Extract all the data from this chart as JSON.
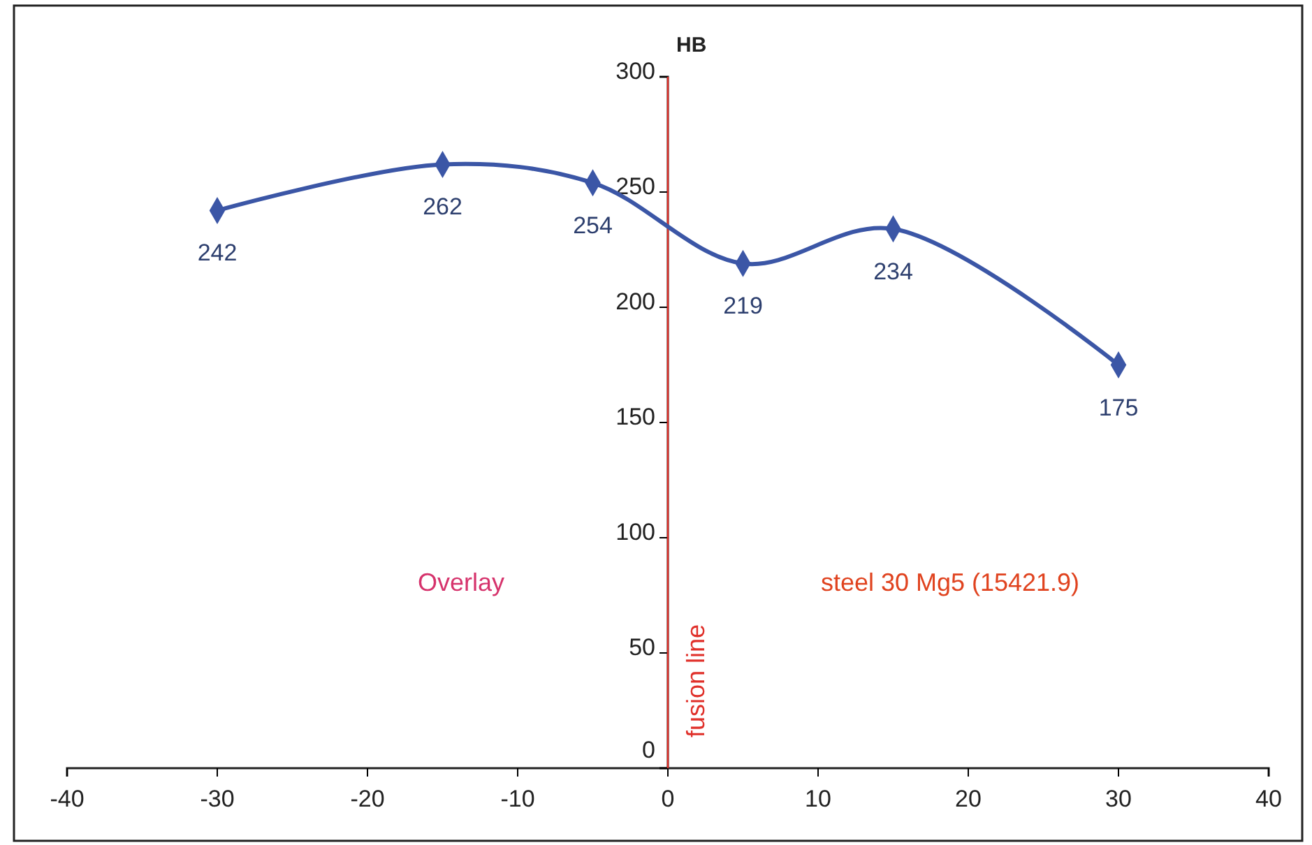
{
  "chart_data": {
    "type": "line",
    "ylabel": "HB",
    "x": [
      -30,
      -15,
      -5,
      5,
      15,
      30
    ],
    "series": [
      {
        "color": "#3b56a6",
        "values": [
          242,
          262,
          254,
          219,
          234,
          175
        ]
      }
    ],
    "xlim": [
      -40,
      40
    ],
    "xticks": [
      -40,
      -30,
      -20,
      -10,
      0,
      10,
      20,
      30,
      40
    ],
    "ylim": [
      0,
      300
    ],
    "yticks": [
      0,
      50,
      100,
      150,
      200,
      250,
      300
    ],
    "data_labels": true,
    "marker": "diamond",
    "grid": false,
    "ref_lines": [
      {
        "axis": "x",
        "value": 0,
        "label": "fusion line",
        "color": "#e0302a"
      }
    ],
    "annotations": [
      "Overlay",
      "steel 30 Mg5 (15421.9)"
    ]
  }
}
